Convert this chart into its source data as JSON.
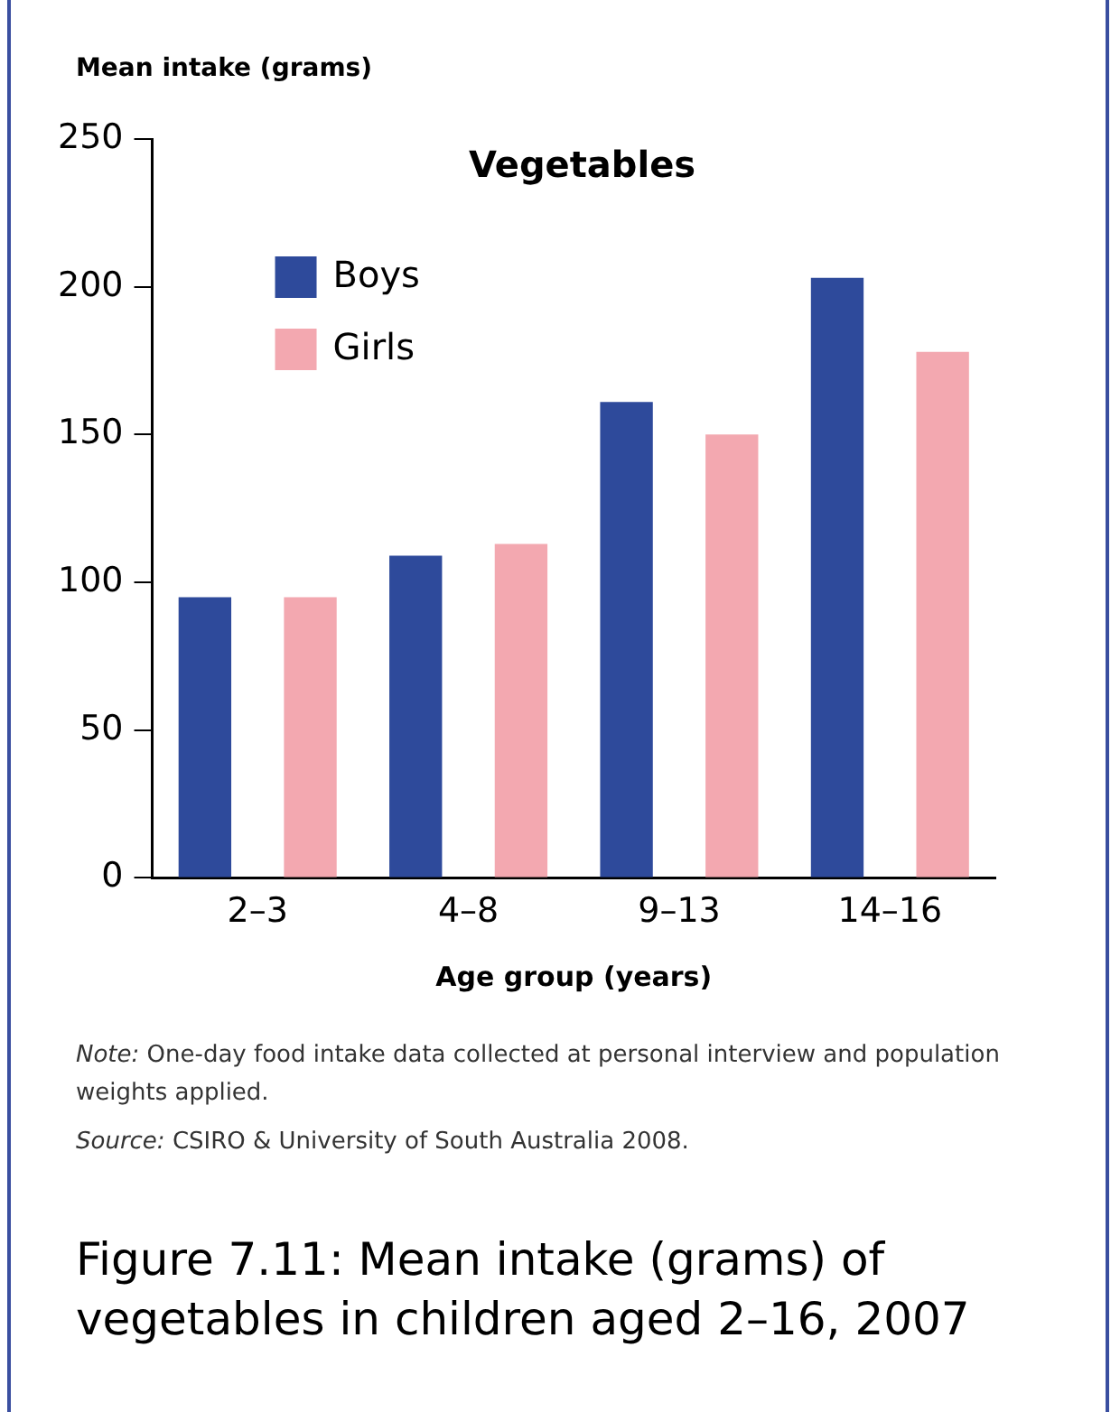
{
  "chart_data": {
    "type": "bar",
    "title": "Figure 7.11: Mean intake (grams) of vegetables in children aged 2–16, 2007",
    "subtitle": "Vegetables",
    "xlabel": "Age group (years)",
    "ylabel": "Mean intake (grams)",
    "categories": [
      "2–3",
      "4–8",
      "9–13",
      "14–16"
    ],
    "series": [
      {
        "name": "Boys",
        "color": "#2e4a9b",
        "values": [
          95,
          109,
          161,
          203
        ]
      },
      {
        "name": "Girls",
        "color": "#f3a8b0",
        "values": [
          95,
          113,
          150,
          178
        ]
      }
    ],
    "ylim": [
      0,
      250
    ],
    "yticks": [
      0,
      50,
      100,
      150,
      200,
      250
    ],
    "grid": false,
    "legend": "top left",
    "annotations": [
      "Note: One-day food intake data collected at personal interview and population weights applied.",
      "Source: CSIRO & University of South Australia 2008."
    ]
  }
}
